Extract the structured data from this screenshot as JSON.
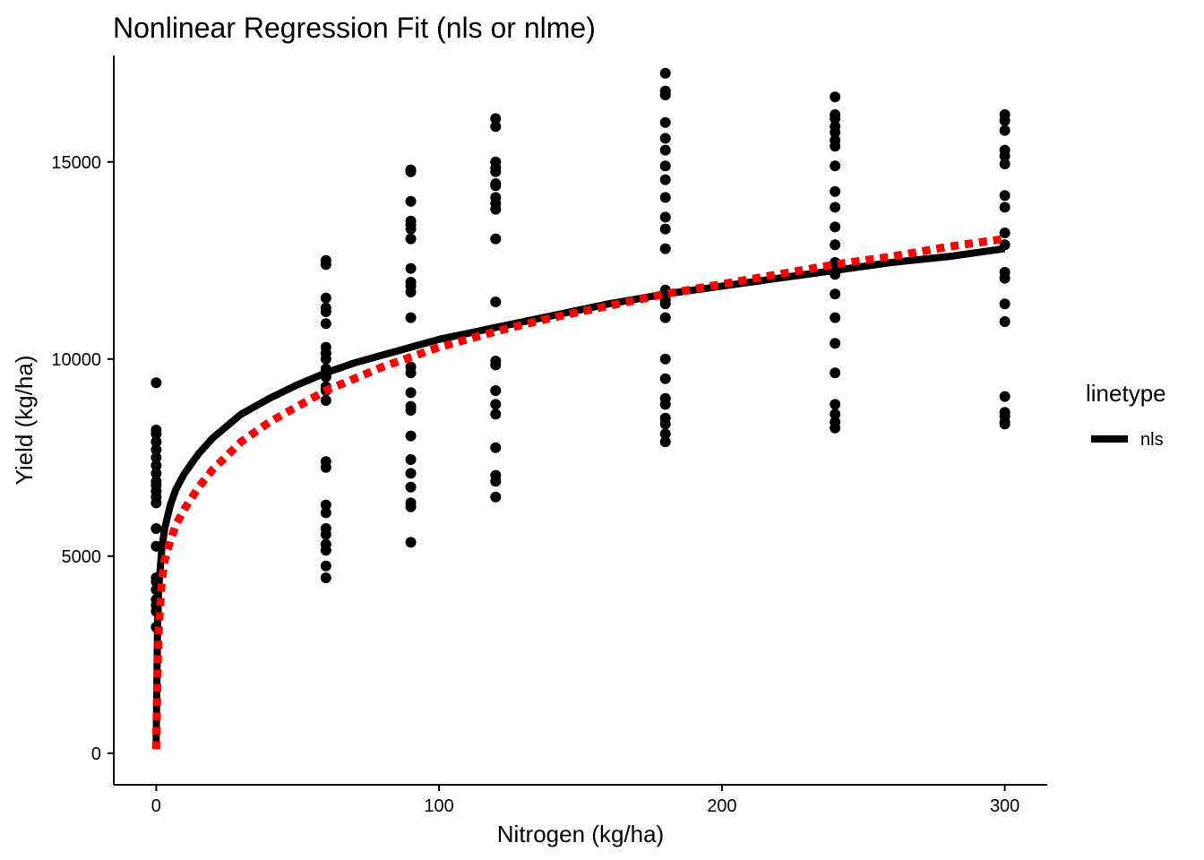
{
  "chart_data": {
    "type": "scatter",
    "title": "Nonlinear Regression Fit (nls or nlme)",
    "xlabel": "Nitrogen (kg/ha)",
    "ylabel": "Yield (kg/ha)",
    "xlim": [
      -15,
      315
    ],
    "ylim": [
      -800,
      17700
    ],
    "x_ticks": [
      0,
      100,
      200,
      300
    ],
    "y_ticks": [
      0,
      5000,
      10000,
      15000
    ],
    "x_tick_labels": [
      "0",
      "100",
      "200",
      "300"
    ],
    "y_tick_labels": [
      "0",
      "5000",
      "10000",
      "15000"
    ],
    "grid": false,
    "legend": {
      "title": "linetype",
      "position": "right",
      "entries": [
        {
          "label": "nls",
          "color": "#000000",
          "style": "solid"
        }
      ]
    },
    "points": {
      "color": "#000000",
      "groups": [
        {
          "x": 0,
          "y": [
            9400,
            8200,
            8100,
            7900,
            7700,
            7500,
            7300,
            7100,
            6900,
            6800,
            6650,
            6500,
            6350,
            5700,
            5250,
            4450,
            4350,
            4150,
            3900,
            3750,
            3600,
            3200
          ]
        },
        {
          "x": 60,
          "y": [
            12500,
            12400,
            11550,
            11300,
            11200,
            10900,
            10300,
            10150,
            10000,
            9750,
            9550,
            9300,
            9200,
            8950,
            7400,
            7250,
            6300,
            6100,
            5700,
            5550,
            5300,
            5150,
            4750,
            4450
          ]
        },
        {
          "x": 90,
          "y": [
            14800,
            14750,
            14000,
            13500,
            13400,
            13300,
            13050,
            12300,
            11950,
            11850,
            11700,
            11050,
            9800,
            9650,
            9150,
            8800,
            8700,
            8050,
            7450,
            7100,
            6750,
            6350,
            6250,
            5350
          ]
        },
        {
          "x": 120,
          "y": [
            16100,
            15900,
            15000,
            14850,
            14750,
            14450,
            14400,
            14100,
            13950,
            13800,
            13050,
            11450,
            9950,
            9850,
            9200,
            8850,
            8600,
            7750,
            7050,
            6900,
            6500
          ]
        },
        {
          "x": 180,
          "y": [
            17250,
            16800,
            16700,
            16000,
            15600,
            15300,
            14900,
            14550,
            14100,
            13600,
            13300,
            12800,
            11750,
            11650,
            11500,
            11400,
            11050,
            10000,
            9500,
            9000,
            8850,
            8500,
            8350,
            8100,
            7900
          ]
        },
        {
          "x": 240,
          "y": [
            16650,
            16200,
            16100,
            15900,
            15750,
            15550,
            15400,
            14900,
            14250,
            13850,
            13350,
            12900,
            12450,
            12150,
            11650,
            11050,
            10400,
            9650,
            8850,
            8600,
            8400,
            8250
          ]
        },
        {
          "x": 300,
          "y": [
            16200,
            16050,
            15800,
            15300,
            15150,
            14950,
            14150,
            13850,
            13200,
            12900,
            12200,
            12050,
            11400,
            10950,
            9050,
            8650,
            8550,
            8400,
            8350
          ]
        }
      ]
    },
    "series": [
      {
        "name": "nls",
        "type": "line",
        "color": "#000000",
        "style": "solid",
        "x": [
          0,
          0.5,
          1,
          2,
          3,
          5,
          7,
          10,
          15,
          20,
          30,
          40,
          50,
          60,
          70,
          80,
          90,
          100,
          120,
          140,
          160,
          180,
          200,
          220,
          240,
          260,
          280,
          300
        ],
        "y": [
          300,
          3300,
          4300,
          5200,
          5700,
          6300,
          6700,
          7100,
          7600,
          8000,
          8600,
          9000,
          9350,
          9650,
          9900,
          10100,
          10300,
          10500,
          10800,
          11100,
          11400,
          11650,
          11850,
          12050,
          12250,
          12450,
          12600,
          12800
        ]
      },
      {
        "type": "line",
        "color": "#ff0000",
        "style": "dotted",
        "x": [
          0,
          0.5,
          1,
          2,
          3,
          5,
          7,
          10,
          15,
          20,
          30,
          40,
          50,
          60,
          70,
          80,
          90,
          100,
          120,
          140,
          160,
          180,
          200,
          220,
          240,
          260,
          280,
          300
        ],
        "y": [
          100,
          2200,
          3300,
          4400,
          4900,
          5400,
          5800,
          6200,
          6750,
          7200,
          7900,
          8400,
          8800,
          9200,
          9500,
          9800,
          10050,
          10300,
          10700,
          11050,
          11350,
          11650,
          11900,
          12150,
          12400,
          12600,
          12850,
          13050
        ]
      }
    ]
  }
}
